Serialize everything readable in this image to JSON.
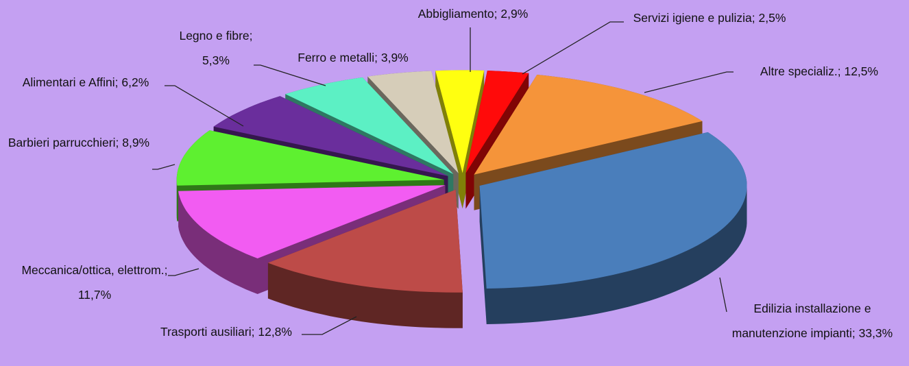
{
  "chart_data": {
    "type": "pie3d",
    "categories": [
      "Servizi igiene e pulizia",
      "Altre specializ.",
      "Edilizia installazione e manutenzione impianti",
      "Trasporti ausiliari",
      "Meccanica/ottica, elettrom.",
      "Barbieri parrucchieri",
      "Alimentari e Affini",
      "Legno e fibre",
      "Ferro e metalli",
      "Abbigliamento"
    ],
    "values": [
      2.5,
      12.5,
      33.3,
      12.8,
      11.7,
      8.9,
      6.2,
      5.3,
      3.9,
      2.9
    ],
    "value_labels": [
      "2,5%",
      "12,5%",
      "33,3%",
      "12,8%",
      "11,7%",
      "8,9%",
      "6,2%",
      "5,3%",
      "3,9%",
      "2,9%"
    ],
    "separator": ";",
    "colors": [
      "#ff0a0a",
      "#f5943a",
      "#4a7ebb",
      "#bd4b48",
      "#f25cf2",
      "#5ef030",
      "#6a2e9c",
      "#5cf0c4",
      "#d6cdb9",
      "#ffff10"
    ]
  }
}
